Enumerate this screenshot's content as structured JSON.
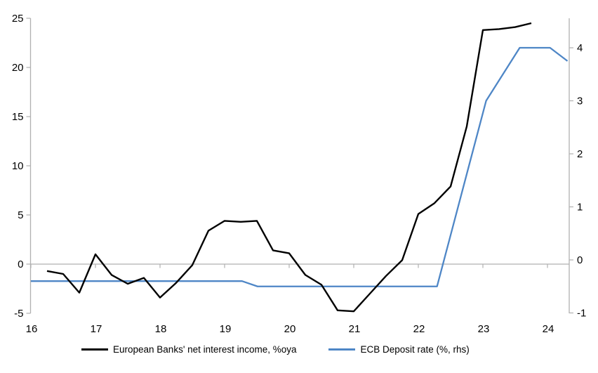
{
  "chart_data": {
    "type": "line",
    "title": "",
    "legend_position": "bottom",
    "grid": "zero-line-only",
    "x_axis": {
      "tick_labels": [
        "16",
        "17",
        "18",
        "19",
        "20",
        "21",
        "22",
        "23",
        "24"
      ],
      "tick_values": [
        2016,
        2017,
        2018,
        2019,
        2020,
        2021,
        2022,
        2023,
        2024
      ],
      "range": [
        2016,
        2024.34
      ]
    },
    "left_axis": {
      "tick_labels": [
        "25",
        "20",
        "15",
        "10",
        "5",
        "0",
        "-5"
      ],
      "tick_values": [
        25,
        20,
        15,
        10,
        5,
        0,
        -5
      ],
      "range": [
        -5,
        25
      ]
    },
    "right_axis": {
      "tick_labels": [
        "4",
        "3",
        "2",
        "1",
        "0",
        "-1"
      ],
      "tick_values": [
        4,
        3,
        2,
        1,
        0,
        -1
      ],
      "range": [
        -1.06,
        4.56
      ]
    },
    "series": [
      {
        "name": "European Banks' net interest income, %oya",
        "axis": "left",
        "color": "#000000",
        "x": [
          2016.25,
          2016.5,
          2016.75,
          2017.0,
          2017.25,
          2017.5,
          2017.75,
          2018.0,
          2018.25,
          2018.5,
          2018.75,
          2019.0,
          2019.25,
          2019.5,
          2019.75,
          2020.0,
          2020.25,
          2020.5,
          2020.75,
          2021.0,
          2021.25,
          2021.5,
          2021.75,
          2022.0,
          2022.25,
          2022.5,
          2022.75,
          2023.0,
          2023.25,
          2023.5,
          2023.75
        ],
        "values": [
          -0.7,
          -1.0,
          -2.9,
          1.0,
          -1.1,
          -2.0,
          -1.4,
          -3.4,
          -1.9,
          -0.1,
          3.4,
          4.4,
          4.3,
          4.4,
          1.4,
          1.1,
          -1.1,
          -2.1,
          -4.7,
          -4.8,
          -3.0,
          -1.2,
          0.4,
          5.1,
          6.2,
          7.9,
          14.0,
          23.8,
          23.9,
          24.1,
          24.5
        ]
      },
      {
        "name": "ECB Deposit rate (%, rhs)",
        "axis": "right",
        "color": "#4e86c6",
        "points": [
          [
            2016.0,
            -0.4
          ],
          [
            2019.27,
            -0.4
          ],
          [
            2019.51,
            -0.5
          ],
          [
            2022.29,
            -0.5
          ],
          [
            2023.05,
            3.0
          ],
          [
            2023.57,
            4.0
          ],
          [
            2024.04,
            4.0
          ],
          [
            2024.31,
            3.75
          ]
        ]
      }
    ]
  },
  "colors": {
    "background": "#ffffff",
    "axis": "#b0b0b0",
    "tick_text": "#000000",
    "nii_line": "#000000",
    "ecb_line": "#4e86c6"
  }
}
